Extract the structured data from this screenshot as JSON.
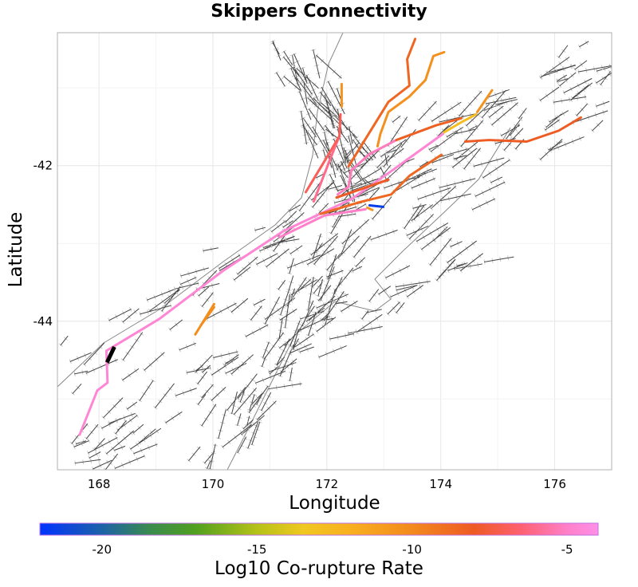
{
  "chart_data": {
    "type": "map",
    "title": "Skippers Connectivity",
    "xlabel": "Longitude",
    "ylabel": "Latitude",
    "xlim": [
      167.27,
      177.0
    ],
    "ylim": [
      -45.91,
      -40.29
    ],
    "xticks": [
      168,
      170,
      172,
      174,
      176
    ],
    "xtick_labels": [
      "168",
      "170",
      "172",
      "174",
      "176"
    ],
    "yticks": [
      -42,
      -44
    ],
    "ytick_labels": [
      "-42",
      "-44"
    ],
    "grid": true,
    "colorbar": {
      "label": "Log10 Co-rupture Rate",
      "range": [
        -22,
        -4
      ],
      "ticks": [
        -20,
        -15,
        -10,
        -5
      ],
      "tick_labels": [
        "-20",
        "-15",
        "-10",
        "-5"
      ],
      "position": "bottom",
      "colorscale": [
        [
          -22,
          "#0033ff"
        ],
        [
          -20,
          "#1d62a8"
        ],
        [
          -18.5,
          "#3a8a50"
        ],
        [
          -17,
          "#50a020"
        ],
        [
          -15,
          "#b5c218"
        ],
        [
          -13.5,
          "#f0c820"
        ],
        [
          -12,
          "#f9b020"
        ],
        [
          -10,
          "#f28a1e"
        ],
        [
          -8,
          "#ee5a24"
        ],
        [
          -6.5,
          "#ff6070"
        ],
        [
          -5,
          "#ff80c8"
        ],
        [
          -4,
          "#ff90e8"
        ]
      ]
    },
    "source_rupture": {
      "value": null,
      "color": "#000000",
      "coords": [
        [
          168.14,
          -44.53
        ],
        [
          168.27,
          -44.33
        ]
      ]
    },
    "ruptures": [
      {
        "value": -4.6,
        "coords": [
          [
            167.66,
            -45.46
          ],
          [
            167.97,
            -44.89
          ],
          [
            168.15,
            -44.79
          ],
          [
            168.13,
            -44.38
          ],
          [
            169.06,
            -43.97
          ],
          [
            170.18,
            -43.35
          ],
          [
            171.24,
            -42.84
          ],
          [
            172.43,
            -42.43
          ],
          [
            173.13,
            -42.07
          ],
          [
            174.04,
            -41.59
          ]
        ]
      },
      {
        "value": -5.2,
        "coords": [
          [
            172.19,
            -42.37
          ],
          [
            172.38,
            -42.27
          ],
          [
            172.43,
            -42.06
          ],
          [
            172.75,
            -41.85
          ],
          [
            173.22,
            -41.67
          ]
        ]
      },
      {
        "value": -5.0,
        "coords": [
          [
            171.17,
            -42.92
          ],
          [
            171.96,
            -42.64
          ],
          [
            172.68,
            -42.56
          ]
        ]
      },
      {
        "value": -6.0,
        "coords": [
          [
            171.77,
            -42.46
          ],
          [
            172.05,
            -41.93
          ],
          [
            172.22,
            -41.62
          ]
        ]
      },
      {
        "value": -7.0,
        "coords": [
          [
            171.63,
            -42.34
          ],
          [
            172.05,
            -41.83
          ],
          [
            172.22,
            -41.62
          ],
          [
            172.24,
            -41.34
          ]
        ]
      },
      {
        "value": -10.5,
        "coords": [
          [
            172.26,
            -41.24
          ],
          [
            172.26,
            -40.95
          ]
        ]
      },
      {
        "value": -8.2,
        "coords": [
          [
            173.22,
            -41.67
          ],
          [
            173.92,
            -41.48
          ],
          [
            174.36,
            -41.39
          ]
        ]
      },
      {
        "value": -10.3,
        "coords": [
          [
            172.89,
            -41.75
          ],
          [
            172.94,
            -41.59
          ],
          [
            173.08,
            -41.31
          ],
          [
            173.45,
            -41.11
          ],
          [
            173.73,
            -40.9
          ],
          [
            173.87,
            -40.59
          ],
          [
            174.06,
            -40.54
          ]
        ]
      },
      {
        "value": -8.5,
        "coords": [
          [
            172.38,
            -42.01
          ],
          [
            173.08,
            -41.18
          ],
          [
            173.45,
            -40.97
          ],
          [
            173.41,
            -40.63
          ],
          [
            173.55,
            -40.37
          ]
        ]
      },
      {
        "value": -8.0,
        "coords": [
          [
            172.17,
            -42.41
          ],
          [
            173.08,
            -42.18
          ]
        ]
      },
      {
        "value": -8.6,
        "coords": [
          [
            171.89,
            -42.62
          ],
          [
            172.57,
            -42.47
          ],
          [
            173.13,
            -42.37
          ],
          [
            173.45,
            -42.13
          ],
          [
            174.01,
            -41.86
          ]
        ]
      },
      {
        "value": -8.1,
        "coords": [
          [
            174.43,
            -41.69
          ],
          [
            174.85,
            -41.67
          ],
          [
            175.51,
            -41.69
          ],
          [
            176.07,
            -41.55
          ],
          [
            176.46,
            -41.38
          ]
        ]
      },
      {
        "value": -12.8,
        "coords": [
          [
            174.06,
            -41.57
          ],
          [
            174.34,
            -41.45
          ],
          [
            174.62,
            -41.34
          ]
        ]
      },
      {
        "value": -10.4,
        "coords": [
          [
            174.64,
            -41.31
          ],
          [
            174.9,
            -41.03
          ]
        ]
      },
      {
        "value": -21.5,
        "coords": [
          [
            172.75,
            -42.51
          ],
          [
            172.99,
            -42.53
          ]
        ]
      },
      {
        "value": -10.6,
        "coords": [
          [
            172.71,
            -42.54
          ],
          [
            172.8,
            -42.57
          ]
        ]
      },
      {
        "value": -10.2,
        "coords": [
          [
            169.69,
            -44.17
          ],
          [
            170.02,
            -43.78
          ]
        ]
      },
      {
        "value": -10.2,
        "coords": [
          [
            169.79,
            -44.05
          ],
          [
            170.02,
            -43.82
          ]
        ]
      }
    ]
  }
}
